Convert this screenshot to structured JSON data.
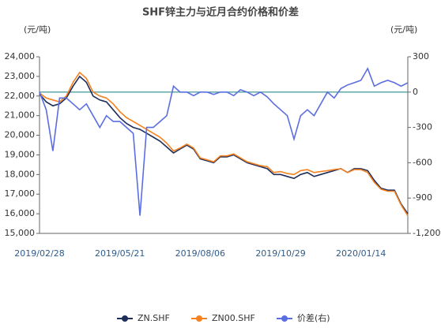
{
  "chart_data": {
    "type": "line",
    "title": "SHF锌主力与近月合约价格和价差",
    "y_unit": "(元/吨)",
    "y2_unit": "(元/吨)",
    "categories": [
      "2019/02/28",
      null,
      null,
      null,
      null,
      null,
      null,
      null,
      null,
      null,
      null,
      null,
      "2019/05/21",
      null,
      null,
      null,
      null,
      null,
      null,
      null,
      null,
      null,
      null,
      null,
      "2019/08/06",
      null,
      null,
      null,
      null,
      null,
      null,
      null,
      null,
      null,
      null,
      null,
      "2019/10/29",
      null,
      null,
      null,
      null,
      null,
      null,
      null,
      null,
      null,
      null,
      null,
      "2020/01/14",
      null,
      null,
      null,
      null,
      null,
      null,
      null
    ],
    "series": [
      {
        "name": "ZN.SHF",
        "color": "#1f2d5a",
        "values": [
          22100,
          21700,
          21500,
          21600,
          21900,
          22500,
          23000,
          22700,
          22000,
          21800,
          21700,
          21300,
          20900,
          20600,
          20400,
          20300,
          20100,
          19900,
          19700,
          19400,
          19100,
          19300,
          19500,
          19300,
          18800,
          18700,
          18600,
          18900,
          18900,
          19000,
          18800,
          18600,
          18500,
          18400,
          18300,
          18000,
          18000,
          17900,
          17800,
          18000,
          18100,
          17900,
          18000,
          18100,
          18200,
          18300,
          18100,
          18300,
          18300,
          18200,
          17700,
          17300,
          17200,
          17200,
          16500,
          16000
        ]
      },
      {
        "name": "ZN00.SHF",
        "color": "#f58220",
        "values": [
          22150,
          21900,
          21800,
          21700,
          22000,
          22700,
          23200,
          22900,
          22200,
          22000,
          21900,
          21600,
          21200,
          20900,
          20700,
          20500,
          20300,
          20100,
          19900,
          19600,
          19200,
          19350,
          19550,
          19350,
          18850,
          18750,
          18650,
          18950,
          18950,
          19050,
          18850,
          18650,
          18550,
          18450,
          18400,
          18100,
          18150,
          18050,
          18000,
          18200,
          18250,
          18100,
          18150,
          18200,
          18250,
          18300,
          18100,
          18250,
          18250,
          18100,
          17600,
          17250,
          17150,
          17150,
          16450,
          15900
        ]
      },
      {
        "name": "价差(右)",
        "color": "#5b6ee1",
        "axis": "y2",
        "values": [
          0,
          -150,
          -500,
          -50,
          -50,
          -100,
          -150,
          -100,
          -200,
          -300,
          -200,
          -250,
          -250,
          -300,
          -350,
          -1050,
          -300,
          -300,
          -250,
          -200,
          50,
          0,
          0,
          -30,
          0,
          0,
          -20,
          0,
          0,
          -30,
          20,
          0,
          -30,
          0,
          -40,
          -100,
          -150,
          -200,
          -400,
          -200,
          -150,
          -200,
          -100,
          0,
          -50,
          30,
          60,
          80,
          100,
          200,
          50,
          80,
          100,
          80,
          50,
          80
        ]
      }
    ],
    "ylim": [
      15000,
      24000
    ],
    "yticks": [
      {
        "value": 15000,
        "label": "15,000"
      },
      {
        "value": 16000,
        "label": "16,000"
      },
      {
        "value": 17000,
        "label": "17,000"
      },
      {
        "value": 18000,
        "label": "18,000"
      },
      {
        "value": 19000,
        "label": "19,000"
      },
      {
        "value": 20000,
        "label": "20,000"
      },
      {
        "value": 21000,
        "label": "21,000"
      },
      {
        "value": 22000,
        "label": "22,000"
      },
      {
        "value": 23000,
        "label": "23,000"
      },
      {
        "value": 24000,
        "label": "24,000"
      }
    ],
    "y2lim": [
      -1200,
      300
    ],
    "y2ticks": [
      {
        "value": -1200,
        "label": "-1,200"
      },
      -900,
      -600,
      -300,
      0,
      300
    ],
    "zero_line_color": "#2e8b8b",
    "legend": "bottom"
  }
}
